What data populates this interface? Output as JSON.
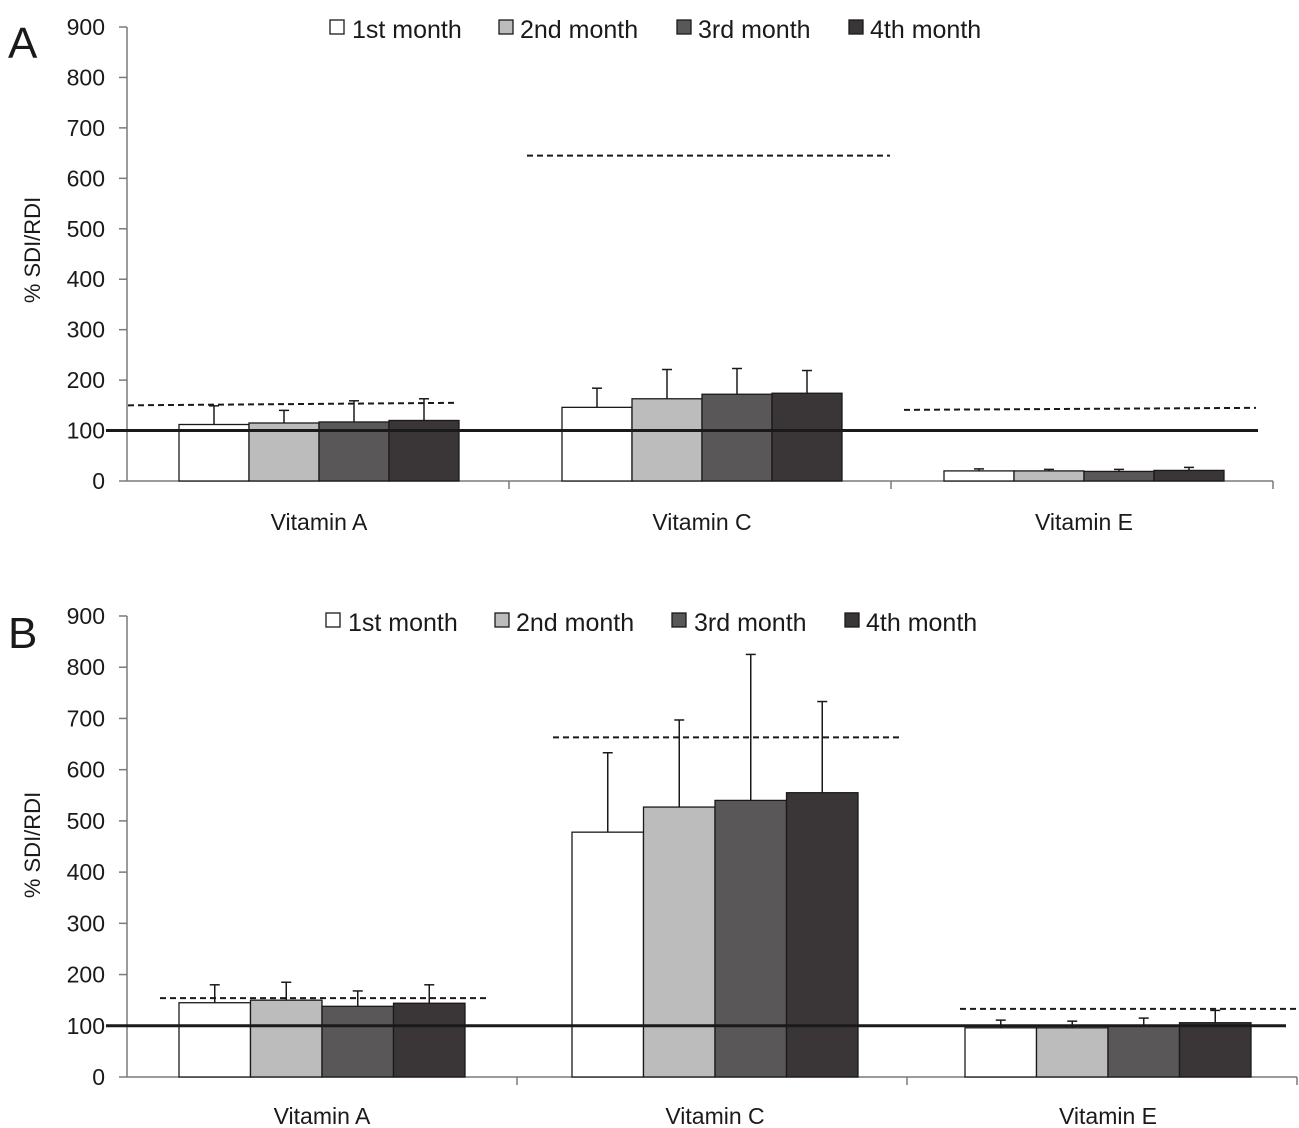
{
  "chart_data": [
    {
      "type": "bar",
      "panel_label": "A",
      "ylabel": "% SDI/RDI",
      "ylim": [
        0,
        900
      ],
      "yticks": [
        0,
        100,
        200,
        300,
        400,
        500,
        600,
        700,
        800,
        900
      ],
      "categories": [
        "Vitamin  A",
        "Vitamin  C",
        "Vitamin  E"
      ],
      "series": [
        {
          "name": "1st month",
          "values": [
            112,
            146,
            20
          ],
          "errors": [
            37,
            38,
            4
          ],
          "color": "#ffffff"
        },
        {
          "name": "2nd month",
          "values": [
            115,
            163,
            20
          ],
          "errors": [
            25,
            58,
            3
          ],
          "color": "#bdbcbd"
        },
        {
          "name": "3rd month",
          "values": [
            117,
            172,
            19
          ],
          "errors": [
            42,
            51,
            4
          ],
          "color": "#5a5758"
        },
        {
          "name": "4th month",
          "values": [
            120,
            174,
            21
          ],
          "errors": [
            43,
            45,
            6
          ],
          "color": "#3a3637"
        }
      ],
      "reference_line": 100,
      "dashed_lines": [
        {
          "category": "Vitamin  A",
          "y_start": 150,
          "y_end": 155
        },
        {
          "category": "Vitamin  C",
          "y_start": 645,
          "y_end": 645
        },
        {
          "category": "Vitamin  E",
          "y_start": 141,
          "y_end": 145
        }
      ],
      "legend_position": "top"
    },
    {
      "type": "bar",
      "panel_label": "B",
      "ylabel": "% SDI/RDI",
      "ylim": [
        0,
        900
      ],
      "yticks": [
        0,
        100,
        200,
        300,
        400,
        500,
        600,
        700,
        800,
        900
      ],
      "categories": [
        "Vitamin  A",
        "Vitamin  C",
        "Vitamin  E"
      ],
      "series": [
        {
          "name": "1st month",
          "values": [
            145,
            478,
            96
          ],
          "errors": [
            35,
            155,
            15
          ],
          "color": "#ffffff"
        },
        {
          "name": "2nd month",
          "values": [
            150,
            527,
            96
          ],
          "errors": [
            35,
            170,
            13
          ],
          "color": "#bdbcbd"
        },
        {
          "name": "3rd month",
          "values": [
            138,
            540,
            100
          ],
          "errors": [
            30,
            285,
            15
          ],
          "color": "#5a5758"
        },
        {
          "name": "4th month",
          "values": [
            144,
            555,
            106
          ],
          "errors": [
            36,
            178,
            24
          ],
          "color": "#3a3637"
        }
      ],
      "reference_line": 100,
      "dashed_lines": [
        {
          "category": "Vitamin  A",
          "y_start": 154,
          "y_end": 154
        },
        {
          "category": "Vitamin  C",
          "y_start": 663,
          "y_end": 663
        },
        {
          "category": "Vitamin  E",
          "y_start": 133,
          "y_end": 133
        }
      ],
      "legend_position": "top"
    }
  ]
}
